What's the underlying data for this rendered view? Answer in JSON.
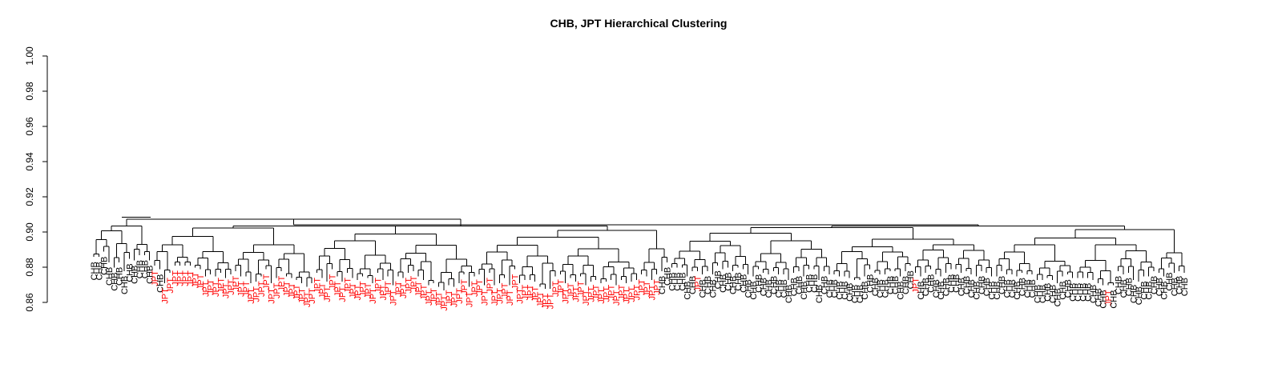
{
  "chart_data": {
    "type": "dendrogram",
    "title": "CHB, JPT Hierarchical Clustering",
    "xlabel": "",
    "ylabel": "",
    "ylim": [
      0.86,
      1.0
    ],
    "y_ticks": [
      "0.86",
      "0.88",
      "0.90",
      "0.92",
      "0.94",
      "0.96",
      "0.98",
      "1.00"
    ],
    "grid": false,
    "colors": {
      "CHB": "#000000",
      "JPT": "#ff0000",
      "branch": "#000000"
    },
    "group_labels": [
      "CHB",
      "JPT"
    ],
    "leaves": [
      "CHB",
      "CHB",
      "CHB",
      "CHB",
      "CHB",
      "CHB",
      "CHB",
      "CHB",
      "CHB",
      "CHB",
      "CHB",
      "CHB",
      "JPT",
      "CHB",
      "JPT",
      "JPT",
      "JPT",
      "JPT",
      "JPT",
      "JPT",
      "JPT",
      "JPT",
      "JPT",
      "JPT",
      "JPT",
      "JPT",
      "JPT",
      "JPT",
      "JPT",
      "JPT",
      "JPT",
      "JPT",
      "JPT",
      "JPT",
      "JPT",
      "JPT",
      "JPT",
      "JPT",
      "JPT",
      "JPT",
      "JPT",
      "JPT",
      "JPT",
      "JPT",
      "JPT",
      "JPT",
      "JPT",
      "JPT",
      "JPT",
      "JPT",
      "JPT",
      "JPT",
      "JPT",
      "JPT",
      "JPT",
      "JPT",
      "JPT",
      "JPT",
      "JPT",
      "JPT",
      "JPT",
      "JPT",
      "JPT",
      "JPT",
      "JPT",
      "JPT",
      "JPT",
      "JPT",
      "JPT",
      "JPT",
      "JPT",
      "JPT",
      "JPT",
      "JPT",
      "JPT",
      "JPT",
      "JPT",
      "JPT",
      "JPT",
      "JPT",
      "JPT",
      "JPT",
      "JPT",
      "JPT",
      "JPT",
      "JPT",
      "JPT",
      "JPT",
      "JPT",
      "JPT",
      "JPT",
      "JPT",
      "JPT",
      "JPT",
      "JPT",
      "JPT",
      "JPT",
      "JPT",
      "JPT",
      "JPT",
      "JPT",
      "JPT",
      "JPT",
      "JPT",
      "JPT",
      "JPT",
      "JPT",
      "JPT",
      "JPT",
      "JPT",
      "JPT",
      "JPT",
      "CHB",
      "CHB",
      "CHB",
      "CHB",
      "CHB",
      "CHB",
      "CHB",
      "JPT",
      "CHB",
      "CHB",
      "CHB",
      "CHB",
      "CHB",
      "CHB",
      "CHB",
      "CHB",
      "CHB",
      "CHB",
      "CHB",
      "CHB",
      "CHB",
      "CHB",
      "CHB",
      "CHB",
      "CHB",
      "CHB",
      "CHB",
      "CHB",
      "CHB",
      "CHB",
      "CHB",
      "CHB",
      "CHB",
      "CHB",
      "CHB",
      "CHB",
      "CHB",
      "CHB",
      "CHB",
      "CHB",
      "CHB",
      "CHB",
      "CHB",
      "CHB",
      "CHB",
      "CHB",
      "CHB",
      "CHB",
      "CHB",
      "CHB",
      "JPT",
      "CHB",
      "CHB",
      "CHB",
      "CHB",
      "CHB",
      "CHB",
      "CHB",
      "CHB",
      "CHB",
      "CHB",
      "CHB",
      "CHB",
      "CHB",
      "CHB",
      "CHB",
      "CHB",
      "CHB",
      "CHB",
      "CHB",
      "CHB",
      "CHB",
      "CHB",
      "CHB",
      "CHB",
      "CHB",
      "CHB",
      "CHB",
      "CHB",
      "CHB",
      "CHB",
      "CHB",
      "CHB",
      "CHB",
      "CHB",
      "CHB",
      "CHB",
      "CHB",
      "JPT",
      "CHB",
      "CHB",
      "CHB",
      "CHB",
      "CHB",
      "CHB",
      "CHB",
      "CHB",
      "CHB",
      "CHB",
      "CHB",
      "CHB",
      "CHB",
      "CHB",
      "CHB"
    ],
    "leaf_heights": [
      0.884,
      0.884,
      0.887,
      0.881,
      0.878,
      0.881,
      0.876,
      0.883,
      0.882,
      0.885,
      0.885,
      0.882,
      0.879,
      0.877,
      0.869,
      0.875,
      0.879,
      0.879,
      0.879,
      0.879,
      0.878,
      0.877,
      0.873,
      0.874,
      0.873,
      0.875,
      0.872,
      0.874,
      0.876,
      0.873,
      0.873,
      0.869,
      0.87,
      0.873,
      0.877,
      0.869,
      0.872,
      0.876,
      0.873,
      0.872,
      0.871,
      0.869,
      0.867,
      0.869,
      0.875,
      0.872,
      0.87,
      0.877,
      0.873,
      0.87,
      0.875,
      0.872,
      0.871,
      0.873,
      0.872,
      0.869,
      0.875,
      0.871,
      0.873,
      0.868,
      0.873,
      0.872,
      0.875,
      0.876,
      0.873,
      0.871,
      0.868,
      0.869,
      0.867,
      0.865,
      0.868,
      0.867,
      0.869,
      0.874,
      0.867,
      0.873,
      0.874,
      0.868,
      0.875,
      0.868,
      0.869,
      0.872,
      0.868,
      0.877,
      0.869,
      0.871,
      0.871,
      0.87,
      0.867,
      0.866,
      0.866,
      0.873,
      0.874,
      0.869,
      0.872,
      0.87,
      0.873,
      0.868,
      0.87,
      0.871,
      0.869,
      0.87,
      0.871,
      0.868,
      0.871,
      0.869,
      0.87,
      0.871,
      0.874,
      0.873,
      0.871,
      0.874,
      0.876,
      0.881,
      0.878,
      0.878,
      0.878,
      0.873,
      0.876,
      0.876,
      0.874,
      0.876,
      0.874,
      0.879,
      0.877,
      0.878,
      0.876,
      0.878,
      0.877,
      0.874,
      0.873,
      0.877,
      0.875,
      0.874,
      0.876,
      0.874,
      0.874,
      0.871,
      0.875,
      0.876,
      0.873,
      0.877,
      0.877,
      0.871,
      0.876,
      0.874,
      0.874,
      0.873,
      0.873,
      0.872,
      0.871,
      0.871,
      0.873,
      0.877,
      0.875,
      0.874,
      0.874,
      0.876,
      0.876,
      0.873,
      0.876,
      0.879,
      0.875,
      0.873,
      0.875,
      0.877,
      0.874,
      0.873,
      0.875,
      0.877,
      0.877,
      0.875,
      0.876,
      0.874,
      0.873,
      0.876,
      0.875,
      0.873,
      0.873,
      0.876,
      0.874,
      0.874,
      0.873,
      0.875,
      0.874,
      0.874,
      0.871,
      0.871,
      0.872,
      0.871,
      0.869,
      0.873,
      0.874,
      0.872,
      0.872,
      0.872,
      0.872,
      0.871,
      0.869,
      0.868,
      0.868,
      0.868,
      0.876,
      0.874,
      0.875,
      0.871,
      0.87,
      0.873,
      0.873,
      0.876,
      0.875,
      0.873,
      0.878,
      0.875,
      0.876,
      0.875,
      0.875,
      0.874,
      0.875,
      0.876,
      0.875
    ],
    "top_merge_heights": [
      0.9085,
      0.9072,
      0.9055,
      0.905,
      0.904
    ]
  }
}
